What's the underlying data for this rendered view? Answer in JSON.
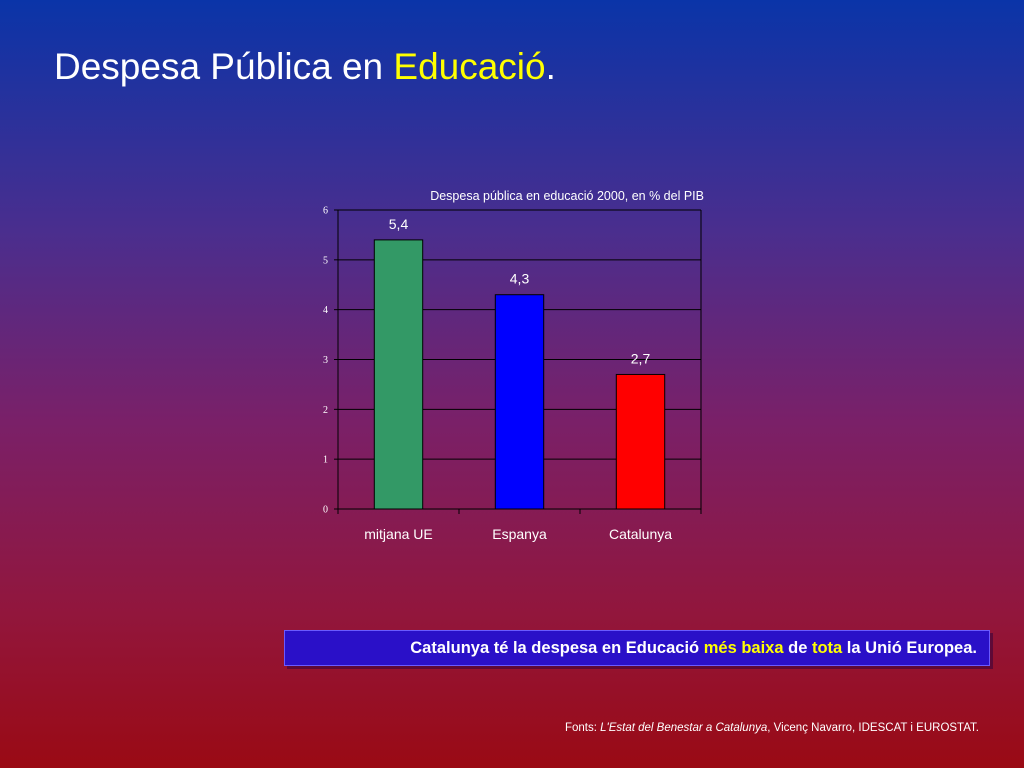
{
  "slide": {
    "title_prefix": "Despesa Pública en ",
    "title_accent": "Educació",
    "title_suffix": ".",
    "title_accent_color": "#ffff00"
  },
  "chart_data": {
    "type": "bar",
    "title": "Despesa pública en educació 2000, en % del PIB",
    "categories": [
      "mitjana UE",
      "Espanya",
      "Catalunya"
    ],
    "values": [
      5.4,
      4.3,
      2.7
    ],
    "value_labels": [
      "5,4",
      "4,3",
      "2,7"
    ],
    "bar_colors": [
      "#339966",
      "#0000ff",
      "#ff0000"
    ],
    "yticks": [
      "0",
      "1",
      "2",
      "3",
      "4",
      "5",
      "6"
    ],
    "ylim": [
      0,
      6
    ],
    "grid": true,
    "xlabel": "",
    "ylabel": ""
  },
  "callout": {
    "part1": "Catalunya té la despesa en Educació ",
    "highlight1": "més baixa",
    "part2": " de ",
    "highlight2": "tota",
    "part3": " la Unió Europea."
  },
  "sources": {
    "prefix": "Fonts: ",
    "italic": "L'Estat del Benestar a Catalunya",
    "suffix": ", Vicenç Navarro, IDESCAT i EUROSTAT."
  }
}
